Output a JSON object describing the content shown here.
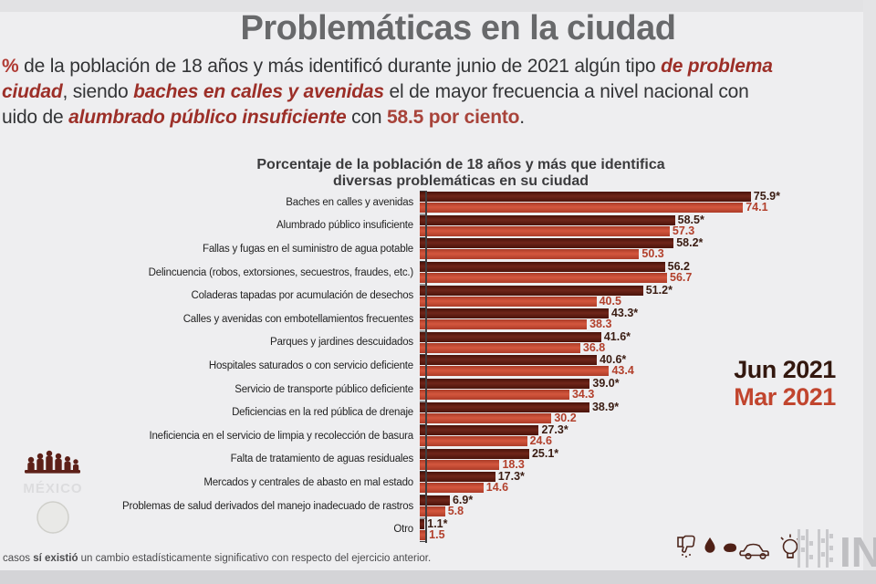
{
  "page_title": "Problemáticas en la ciudad",
  "intro": {
    "line1": {
      "pct": "% ",
      "s1": "de la población de 18 años y más identificó durante junio de 2021 algún tipo ",
      "em1": "de problema"
    },
    "line2": {
      "em1": "ciudad",
      "s1": ", siendo ",
      "em2": "baches en calles y avenidas",
      "s2": " el de mayor frecuencia a nivel nacional con"
    },
    "line3": {
      "s1": "uido de ",
      "em1": "alumbrado público insuficiente",
      "s2": " con ",
      "b1": "58.5 por ciento",
      "s3": "."
    }
  },
  "legend": {
    "jun": "Jun 2021",
    "mar": "Mar 2021"
  },
  "footnote": {
    "s1": "casos ",
    "b1": "sí existió",
    "s2": " un cambio estadísticamente significativo con respecto del ejercicio anterior."
  },
  "gov_logo_text": "MÉXICO",
  "icons": [
    "thumbs-down-icon",
    "water-drop-icon",
    "pothole-icon",
    "car-icon",
    "light-bulb-icon",
    "inegi-logo"
  ],
  "colors": {
    "jun_bar": "#571a10",
    "mar_bar": "#c84b33",
    "jun_text": "#3a1c12",
    "mar_text": "#b2402c",
    "accent_red": "#9c2f28",
    "title_gray": "#68696b"
  },
  "chart_data": {
    "type": "bar",
    "orientation": "horizontal",
    "title": "Porcentaje de la población de 18 años y más que identifica diversas problemáticas en su ciudad",
    "title_lines": [
      "Porcentaje de la población de 18 años y más que identifica",
      "diversas problemáticas en su ciudad"
    ],
    "legend_position": "right",
    "xlim": [
      0,
      80
    ],
    "grid": false,
    "categories": [
      "Baches en calles y avenidas",
      "Alumbrado público insuficiente",
      "Fallas y fugas en el suministro de agua potable",
      "Delincuencia (robos, extorsiones, secuestros, fraudes, etc.)",
      "Coladeras tapadas por acumulación de desechos",
      "Calles y avenidas con embotellamientos frecuentes",
      "Parques y jardines descuidados",
      "Hospitales saturados o con servicio deficiente",
      "Servicio de transporte público deficiente",
      "Deficiencias en la red pública de drenaje",
      "Ineficiencia en el servicio de limpia y recolección de basura",
      "Falta de tratamiento de aguas residuales",
      "Mercados y centrales de abasto en mal estado",
      "Problemas de salud derivados del manejo inadecuado de rastros",
      "Otro"
    ],
    "series": [
      {
        "name": "Jun 2021",
        "color": "#571a10",
        "values": [
          75.9,
          58.5,
          58.2,
          56.2,
          51.2,
          43.3,
          41.6,
          40.6,
          39.0,
          38.9,
          27.3,
          25.1,
          17.3,
          6.9,
          1.1
        ],
        "value_labels": [
          "75.9*",
          "58.5*",
          "58.2*",
          "56.2",
          "51.2*",
          "43.3*",
          "41.6*",
          "40.6*",
          "39.0*",
          "38.9*",
          "27.3*",
          "25.1*",
          "17.3*",
          "6.9*",
          "1.1*"
        ]
      },
      {
        "name": "Mar 2021",
        "color": "#c84b33",
        "values": [
          74.1,
          57.3,
          50.3,
          56.7,
          40.5,
          38.3,
          36.8,
          43.4,
          34.3,
          30.2,
          24.6,
          18.3,
          14.6,
          5.8,
          1.5
        ],
        "value_labels": [
          "74.1",
          "57.3",
          "50.3",
          "56.7",
          "40.5",
          "38.3",
          "36.8",
          "43.4",
          "34.3",
          "30.2",
          "24.6",
          "18.3",
          "14.6",
          "5.8",
          "1.5"
        ]
      }
    ]
  }
}
